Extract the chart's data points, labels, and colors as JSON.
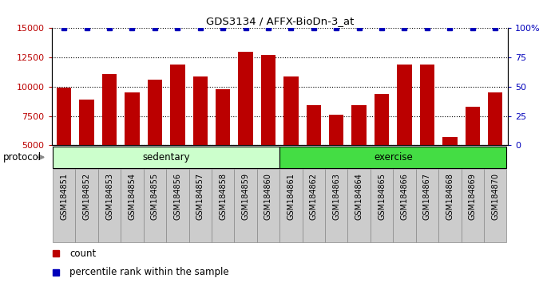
{
  "title": "GDS3134 / AFFX-BioDn-3_at",
  "samples": [
    "GSM184851",
    "GSM184852",
    "GSM184853",
    "GSM184854",
    "GSM184855",
    "GSM184856",
    "GSM184857",
    "GSM184858",
    "GSM184859",
    "GSM184860",
    "GSM184861",
    "GSM184862",
    "GSM184863",
    "GSM184864",
    "GSM184865",
    "GSM184866",
    "GSM184867",
    "GSM184868",
    "GSM184869",
    "GSM184870"
  ],
  "counts": [
    9950,
    8900,
    11100,
    9500,
    10600,
    11900,
    10900,
    9800,
    13000,
    12700,
    10900,
    8450,
    7600,
    8450,
    9350,
    11900,
    11900,
    5700,
    8300,
    9500
  ],
  "groups": [
    {
      "label": "sedentary",
      "start": 0,
      "end": 9,
      "color": "#ccffcc"
    },
    {
      "label": "exercise",
      "start": 10,
      "end": 19,
      "color": "#44dd44"
    }
  ],
  "bar_color": "#bb0000",
  "dot_color": "#0000bb",
  "ylim_left": [
    5000,
    15000
  ],
  "ylim_right": [
    0,
    100
  ],
  "yticks_left": [
    5000,
    7500,
    10000,
    12500,
    15000
  ],
  "yticks_right": [
    0,
    25,
    50,
    75,
    100
  ],
  "ylabel_right_labels": [
    "0",
    "25",
    "50",
    "75",
    "100%"
  ],
  "plot_bg": "#ffffff",
  "xticklabel_bg": "#cccccc",
  "protocol_label": "protocol",
  "legend_count_label": "count",
  "legend_percentile_label": "percentile rank within the sample"
}
